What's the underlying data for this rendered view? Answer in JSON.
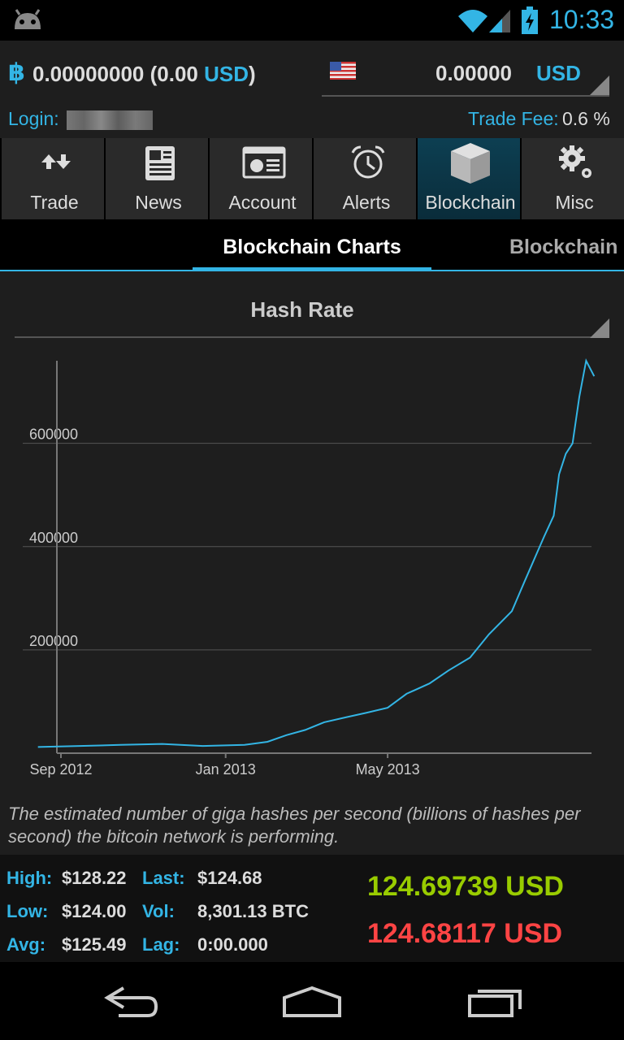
{
  "status": {
    "time": "10:33"
  },
  "header": {
    "btc_symbol": "฿",
    "balance_btc": "0.00000000",
    "balance_usd_open": "(0.00",
    "balance_currency": "USD",
    "balance_close": ")",
    "price": "0.00000",
    "price_currency": "USD",
    "login_label": "Login:",
    "trade_fee_label": "Trade Fee:",
    "trade_fee_value": "0.6 %"
  },
  "tabs": [
    {
      "label": "Trade",
      "icon": "trade-arrows-icon"
    },
    {
      "label": "News",
      "icon": "newspaper-icon"
    },
    {
      "label": "Account",
      "icon": "account-card-icon"
    },
    {
      "label": "Alerts",
      "icon": "alarm-clock-icon"
    },
    {
      "label": "Blockchain",
      "icon": "cube-icon",
      "active": true
    },
    {
      "label": "Misc",
      "icon": "gears-icon"
    }
  ],
  "subtabs": {
    "active": "Blockchain Charts",
    "next": "Blockchain"
  },
  "chart_select": {
    "value": "Hash Rate"
  },
  "chart_data": {
    "type": "line",
    "title": "Hash Rate",
    "x_ticks": [
      "Sep 2012",
      "Jan 2013",
      "May 2013"
    ],
    "y_ticks": [
      200000,
      400000,
      600000
    ],
    "ylim": [
      0,
      760000
    ],
    "grid": true,
    "color": "#33b5e5",
    "series": [
      {
        "x": [
          "2012-08-15",
          "2012-09-15",
          "2012-10-15",
          "2012-11-15",
          "2012-12-15",
          "2013-01-15",
          "2013-02-01",
          "2013-02-15",
          "2013-03-01",
          "2013-03-15",
          "2013-04-01",
          "2013-04-15",
          "2013-05-01",
          "2013-05-15",
          "2013-06-01",
          "2013-06-15",
          "2013-07-01",
          "2013-07-15",
          "2013-08-01",
          "2013-08-10",
          "2013-08-20",
          "2013-08-25",
          "2013-09-01",
          "2013-09-05",
          "2013-09-10",
          "2013-09-15",
          "2013-09-20",
          "2013-09-25",
          "2013-10-01"
        ],
        "y": [
          12000,
          14000,
          16000,
          18000,
          14000,
          16000,
          22000,
          35000,
          45000,
          60000,
          70000,
          78000,
          88000,
          115000,
          135000,
          160000,
          185000,
          230000,
          275000,
          330000,
          390000,
          420000,
          460000,
          540000,
          580000,
          600000,
          690000,
          760000,
          730000
        ]
      }
    ]
  },
  "description": "The estimated number of giga hashes per second (billions of hashes per second) the bitcoin network is performing.",
  "ticker": {
    "high_label": "High:",
    "high": "$128.22",
    "last_label": "Last:",
    "last": "$124.68",
    "low_label": "Low:",
    "low": "$124.00",
    "vol_label": "Vol:",
    "vol": "8,301.13 BTC",
    "avg_label": "Avg:",
    "avg": "$125.49",
    "lag_label": "Lag:",
    "lag": "0:00.000",
    "ask": "124.69739 USD",
    "bid": "124.68117 USD"
  },
  "colors": {
    "accent": "#33b5e5",
    "ask": "#99cc00",
    "bid": "#ff4444"
  }
}
